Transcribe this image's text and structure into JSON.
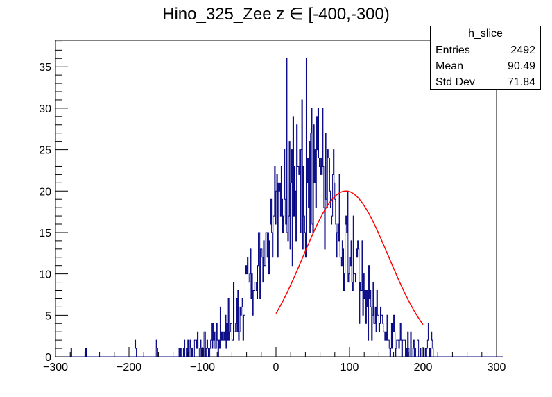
{
  "chart_data": {
    "type": "histogram",
    "title": "Hino_325_Zee z  ∈ [-400,-300)",
    "xlabel": "",
    "ylabel": "",
    "xlim": [
      -300,
      300
    ],
    "ylim": [
      0,
      38.2
    ],
    "x_ticks": [
      -300,
      -200,
      -100,
      0,
      100,
      200,
      300
    ],
    "x_tick_labels": [
      "−300",
      "−200",
      "−100",
      "0",
      "100",
      "200",
      "300"
    ],
    "y_ticks": [
      0,
      5,
      10,
      15,
      20,
      25,
      30,
      35
    ],
    "y_tick_labels": [
      "0",
      "5",
      "10",
      "15",
      "20",
      "25",
      "30",
      "35"
    ],
    "bin_range": [
      -300,
      300
    ],
    "bin_width": 1,
    "bin_counts": [
      0,
      0,
      0,
      0,
      0,
      0,
      0,
      0,
      0,
      0,
      0,
      0,
      0,
      0,
      0,
      0,
      0,
      0,
      0,
      0,
      0,
      1,
      0,
      0,
      0,
      0,
      0,
      0,
      0,
      0,
      0,
      0,
      0,
      0,
      0,
      0,
      0,
      0,
      0,
      0,
      0,
      1,
      0,
      0,
      0,
      0,
      0,
      0,
      0,
      0,
      0,
      0,
      0,
      0,
      0,
      0,
      0,
      0,
      0,
      0,
      0,
      0,
      0,
      0,
      0,
      0,
      0,
      0,
      0,
      0,
      0,
      0,
      0,
      0,
      0,
      0,
      0,
      0,
      0,
      0,
      0,
      0,
      0,
      0,
      0,
      0,
      0,
      0,
      0,
      0,
      0,
      0,
      0,
      0,
      0,
      0,
      0,
      0,
      0,
      0,
      0,
      0,
      0,
      0,
      0,
      0,
      0,
      0,
      2,
      1,
      0,
      0,
      0,
      0,
      0,
      0,
      0,
      0,
      0,
      0,
      0,
      0,
      0,
      0,
      0,
      0,
      0,
      0,
      0,
      0,
      0,
      0,
      0,
      0,
      0,
      0,
      0,
      2,
      1,
      0,
      0,
      0,
      0,
      0,
      0,
      0,
      0,
      0,
      0,
      0,
      0,
      0,
      0,
      0,
      0,
      0,
      0,
      0,
      0,
      0,
      0,
      0,
      0,
      0,
      0,
      0,
      0,
      0,
      1,
      0,
      1,
      0,
      0,
      0,
      1,
      2,
      0,
      0,
      1,
      0,
      2,
      0,
      0,
      2,
      1,
      0,
      1,
      0,
      0,
      2,
      2,
      2,
      1,
      3,
      0,
      0,
      1,
      2,
      0,
      1,
      1,
      0,
      3,
      3,
      0,
      1,
      2,
      1,
      0,
      0,
      1,
      2,
      4,
      1,
      4,
      2,
      3,
      1,
      1,
      4,
      2,
      0,
      2,
      1,
      6,
      2,
      3,
      2,
      2,
      3,
      2,
      5,
      1,
      4,
      2,
      7,
      2,
      3,
      4,
      4,
      2,
      2,
      9,
      3,
      3,
      4,
      7,
      3,
      8,
      2,
      3,
      6,
      5,
      6,
      7,
      2,
      5,
      5,
      10,
      11,
      10,
      12,
      9,
      9,
      10,
      13,
      7,
      10,
      5,
      8,
      8,
      9,
      9,
      8,
      7,
      11,
      15,
      15,
      7,
      13,
      13,
      12,
      9,
      14,
      11,
      11,
      15,
      15,
      12,
      15,
      10,
      14,
      16,
      19,
      15,
      12,
      17,
      17,
      23,
      16,
      20,
      22,
      12,
      21,
      20,
      21,
      17,
      23,
      19,
      15,
      17,
      25,
      19,
      16,
      36,
      15,
      14,
      17,
      26,
      13,
      21,
      25,
      11,
      29,
      17,
      23,
      20,
      14,
      28,
      23,
      23,
      22,
      25,
      15,
      25,
      31,
      13,
      23,
      17,
      15,
      12,
      36,
      21,
      24,
      18,
      26,
      15,
      27,
      30,
      16,
      15,
      28,
      21,
      25,
      18,
      29,
      25,
      30,
      24,
      23,
      22,
      24,
      22,
      30,
      23,
      18,
      13,
      27,
      19,
      18,
      25,
      24,
      24,
      20,
      18,
      16,
      17,
      22,
      25,
      21,
      19,
      16,
      12,
      15,
      16,
      14,
      22,
      12,
      12,
      11,
      14,
      13,
      8,
      10,
      16,
      17,
      15,
      20,
      9,
      10,
      12,
      11,
      14,
      9,
      8,
      17,
      10,
      10,
      9,
      13,
      12,
      14,
      13,
      4,
      9,
      8,
      8,
      14,
      5,
      10,
      7,
      8,
      4,
      8,
      6,
      2,
      11,
      7,
      8,
      6,
      2,
      5,
      9,
      4,
      4,
      6,
      3,
      8,
      5,
      5,
      3,
      4,
      6,
      5,
      5,
      4,
      3,
      3,
      2,
      3,
      2,
      5,
      2,
      2,
      1,
      0,
      1,
      4,
      1,
      3,
      5,
      3,
      0,
      1,
      2,
      2,
      2,
      1,
      2,
      4,
      2,
      0,
      2,
      2,
      2,
      2,
      0,
      1,
      0,
      3,
      1,
      0,
      0,
      3,
      0,
      0,
      1,
      2,
      0,
      1,
      0,
      0,
      2,
      2,
      0,
      0,
      1,
      0,
      0,
      0,
      1,
      0,
      0,
      1,
      0,
      1,
      2,
      4,
      0,
      1,
      0,
      3,
      2,
      1,
      0,
      0,
      0,
      0,
      0,
      0,
      0,
      0,
      0,
      0,
      0,
      0,
      0,
      0,
      0,
      0,
      0,
      0,
      0,
      0,
      0,
      0,
      0,
      0,
      0,
      0,
      0,
      0,
      0,
      0,
      0,
      0,
      0,
      0,
      0,
      0,
      0,
      0,
      0,
      0,
      0,
      0,
      0,
      0,
      0,
      0,
      0,
      0,
      0,
      0,
      0,
      0,
      0,
      0,
      0,
      0,
      0,
      0,
      0,
      0,
      0,
      0,
      0,
      0,
      0,
      0,
      0,
      0,
      0,
      0,
      0,
      0,
      0,
      0,
      0,
      0,
      0,
      0,
      0,
      0,
      0,
      0,
      0,
      0,
      0,
      0,
      0,
      0,
      0,
      0,
      0,
      0,
      0,
      0,
      0
    ],
    "series": [
      {
        "name": "h_slice",
        "kind": "histogram",
        "color": "#000080"
      },
      {
        "name": "fit",
        "kind": "gaussian",
        "color": "#ff0000",
        "amplitude": 20.0,
        "mean": 95,
        "sigma": 58,
        "range": [
          0,
          200
        ]
      }
    ],
    "grid": false
  },
  "stats_box": {
    "name": "h_slice",
    "rows": [
      {
        "label": "Entries",
        "value": "2492"
      },
      {
        "label": "Mean",
        "value": "90.49"
      },
      {
        "label": "Std Dev",
        "value": "71.84"
      }
    ]
  }
}
